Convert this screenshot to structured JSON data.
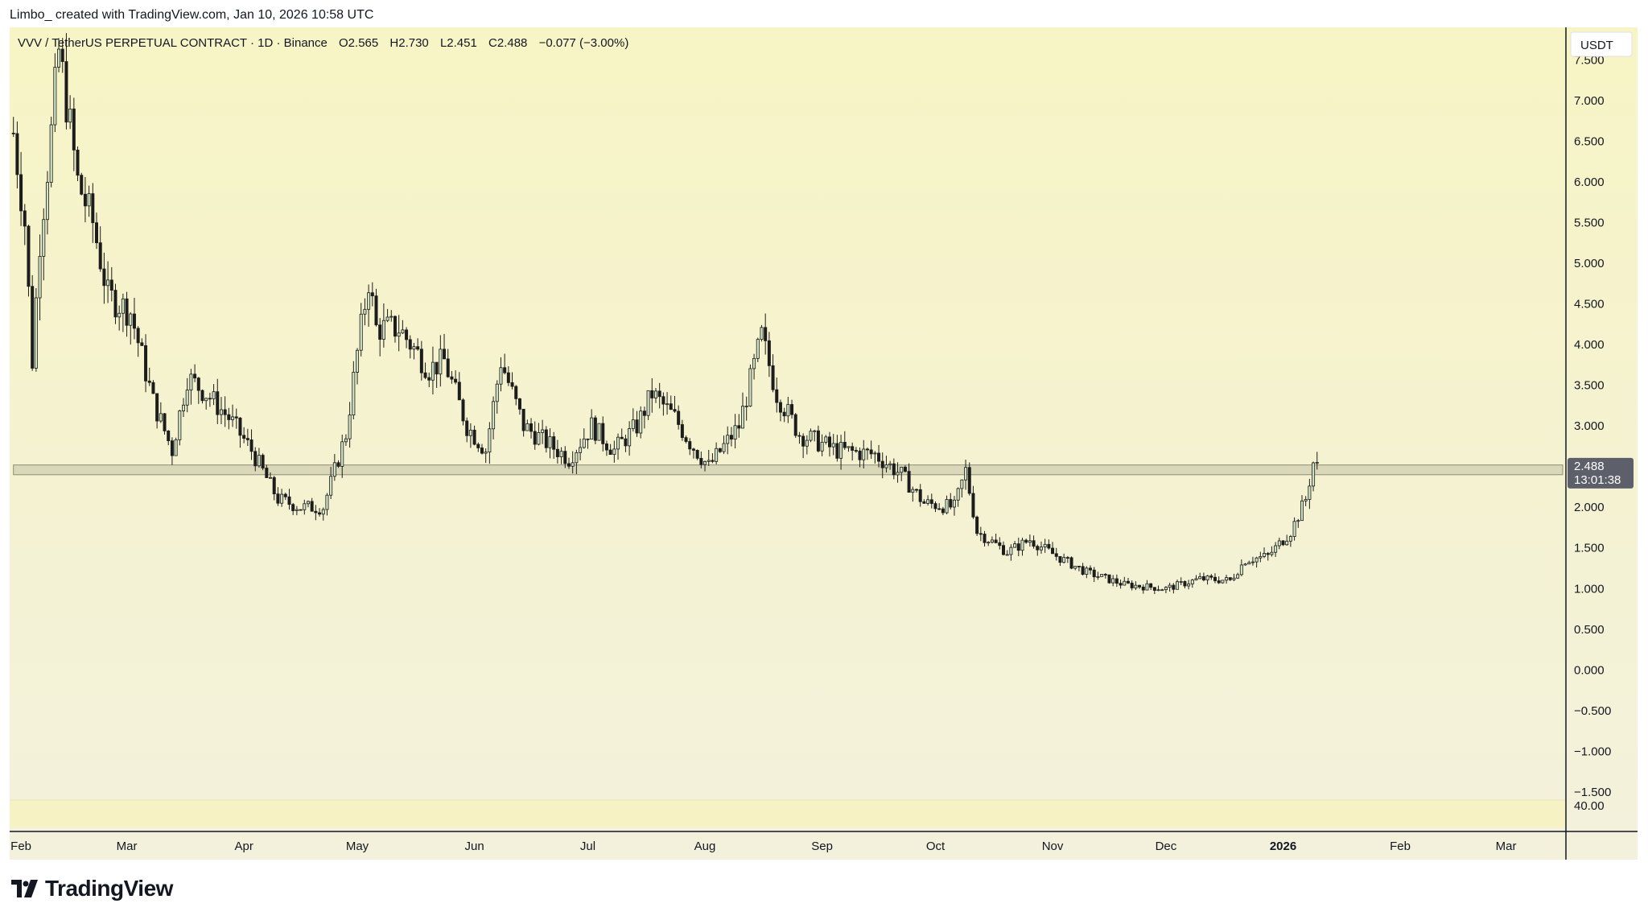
{
  "header": {
    "attribution": "Limbo_ created with TradingView.com, Jan 10, 2026 10:58 UTC"
  },
  "footer": {
    "brand": "TradingView"
  },
  "colors": {
    "background": "#f6f2c4",
    "candle_up": "#cfe2c3",
    "candle_down": "#1c1c1c",
    "support_zone": "#d3d2b4",
    "price_label": "#5d606b"
  },
  "chart_data": {
    "type": "candlestick",
    "symbol": "VVV / TetherUS PERPETUAL CONTRACT · 1D · Binance",
    "ohlc": {
      "open": "O2.565",
      "high": "H2.730",
      "low": "L2.451",
      "close": "C2.488",
      "change": "−0.077 (−3.00%)"
    },
    "currency": "USDT",
    "y_ticks": [
      "7.500",
      "7.000",
      "6.500",
      "6.000",
      "5.500",
      "5.000",
      "4.500",
      "4.000",
      "3.500",
      "3.000",
      "2.000",
      "1.500",
      "1.000",
      "0.500",
      "0.000",
      "−0.500",
      "−1.000",
      "−1.500"
    ],
    "y_tick_values": [
      7.5,
      7.0,
      6.5,
      6.0,
      5.5,
      5.0,
      4.5,
      4.0,
      3.5,
      3.0,
      2.0,
      1.5,
      1.0,
      0.5,
      0.0,
      -0.5,
      -1.0,
      -1.5
    ],
    "ylim": [
      -1.6,
      7.9
    ],
    "x_labels": [
      "Feb",
      "Mar",
      "Apr",
      "May",
      "Jun",
      "Jul",
      "Aug",
      "Sep",
      "Oct",
      "Nov",
      "Dec",
      "2026",
      "Feb",
      "Mar"
    ],
    "x_label_dates": [
      "2025-02-01",
      "2025-03-01",
      "2025-04-01",
      "2025-05-01",
      "2025-06-01",
      "2025-07-01",
      "2025-08-01",
      "2025-09-01",
      "2025-10-01",
      "2025-11-01",
      "2025-12-01",
      "2026-01-01",
      "2026-02-01",
      "2026-03-01"
    ],
    "xlim": [
      "2025-01-29",
      "2026-03-16"
    ],
    "last_price": "2.488",
    "countdown": "13:01:38",
    "support_zone": {
      "low": 2.4,
      "high": 2.52,
      "from": "2025-01-30",
      "to": "2026-03-16"
    },
    "lower_pane_tick": "40.00",
    "trend_keypoints": [
      [
        "2025-01-30",
        6.6
      ],
      [
        "2025-02-02",
        5.5
      ],
      [
        "2025-02-04",
        3.8
      ],
      [
        "2025-02-06",
        5.3
      ],
      [
        "2025-02-09",
        6.6
      ],
      [
        "2025-02-11",
        7.6
      ],
      [
        "2025-02-13",
        7.0
      ],
      [
        "2025-02-16",
        6.0
      ],
      [
        "2025-02-20",
        5.5
      ],
      [
        "2025-02-24",
        4.6
      ],
      [
        "2025-03-02",
        4.4
      ],
      [
        "2025-03-08",
        3.3
      ],
      [
        "2025-03-13",
        2.7
      ],
      [
        "2025-03-17",
        3.6
      ],
      [
        "2025-03-22",
        3.4
      ],
      [
        "2025-03-28",
        3.1
      ],
      [
        "2025-04-03",
        2.7
      ],
      [
        "2025-04-10",
        2.1
      ],
      [
        "2025-04-16",
        2.0
      ],
      [
        "2025-04-22",
        2.0
      ],
      [
        "2025-04-28",
        2.9
      ],
      [
        "2025-05-01",
        3.9
      ],
      [
        "2025-05-04",
        4.8
      ],
      [
        "2025-05-06",
        4.2
      ],
      [
        "2025-05-12",
        4.2
      ],
      [
        "2025-05-20",
        3.7
      ],
      [
        "2025-05-24",
        3.8
      ],
      [
        "2025-05-30",
        3.0
      ],
      [
        "2025-06-04",
        2.7
      ],
      [
        "2025-06-08",
        3.8
      ],
      [
        "2025-06-14",
        3.0
      ],
      [
        "2025-06-20",
        2.8
      ],
      [
        "2025-06-26",
        2.6
      ],
      [
        "2025-07-02",
        3.0
      ],
      [
        "2025-07-08",
        2.7
      ],
      [
        "2025-07-14",
        3.0
      ],
      [
        "2025-07-18",
        3.4
      ],
      [
        "2025-07-24",
        3.1
      ],
      [
        "2025-07-28",
        2.8
      ],
      [
        "2025-08-02",
        2.5
      ],
      [
        "2025-08-10",
        3.0
      ],
      [
        "2025-08-16",
        4.1
      ],
      [
        "2025-08-20",
        3.4
      ],
      [
        "2025-08-26",
        2.9
      ],
      [
        "2025-09-05",
        2.7
      ],
      [
        "2025-09-15",
        2.65
      ],
      [
        "2025-09-22",
        2.4
      ],
      [
        "2025-09-28",
        2.05
      ],
      [
        "2025-10-06",
        2.0
      ],
      [
        "2025-10-09",
        2.45
      ],
      [
        "2025-10-12",
        1.7
      ],
      [
        "2025-10-20",
        1.45
      ],
      [
        "2025-10-26",
        1.6
      ],
      [
        "2025-11-02",
        1.4
      ],
      [
        "2025-11-10",
        1.2
      ],
      [
        "2025-11-20",
        1.05
      ],
      [
        "2025-12-01",
        1.0
      ],
      [
        "2025-12-10",
        1.12
      ],
      [
        "2025-12-18",
        1.1
      ],
      [
        "2025-12-22",
        1.35
      ],
      [
        "2025-12-28",
        1.4
      ],
      [
        "2026-01-03",
        1.7
      ],
      [
        "2026-01-07",
        2.1
      ],
      [
        "2026-01-09",
        2.55
      ],
      [
        "2026-01-10",
        2.49
      ]
    ]
  }
}
